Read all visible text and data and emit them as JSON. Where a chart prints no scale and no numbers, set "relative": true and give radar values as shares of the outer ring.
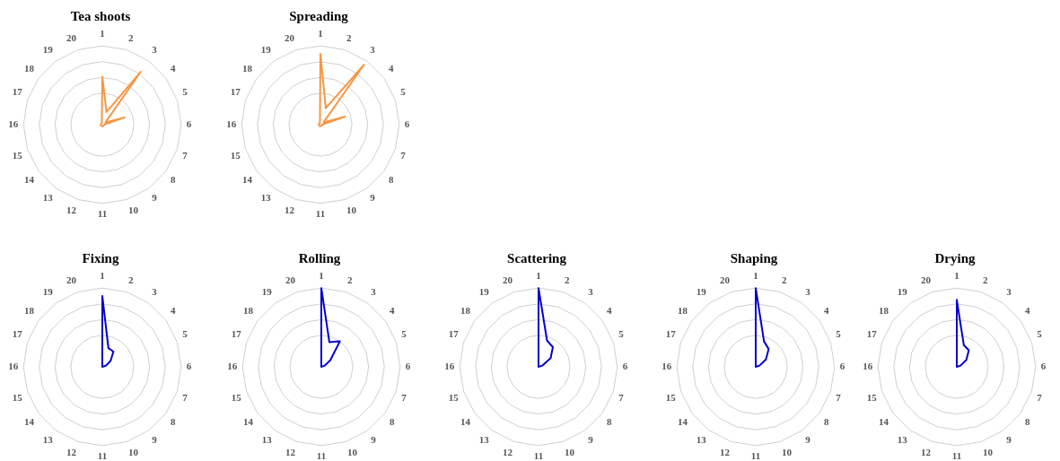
{
  "chart_data": [
    {
      "type": "radar",
      "title": "Tea shoots",
      "relative": true,
      "grid": true,
      "marker": "none",
      "categories": [
        "1",
        "2",
        "3",
        "4",
        "5",
        "6",
        "7",
        "8",
        "9",
        "10",
        "11",
        "12",
        "13",
        "14",
        "15",
        "16",
        "17",
        "18",
        "19",
        "20"
      ],
      "series": [
        {
          "color": "#f79646",
          "values": [
            0.61,
            0.17,
            0.83,
            0.05,
            0.3,
            0.02,
            0.02,
            0.02,
            0.02,
            0.02,
            0.02,
            0.02,
            0.02,
            0.02,
            0.02,
            0.02,
            0.02,
            0.02,
            0.02,
            0.02
          ]
        }
      ]
    },
    {
      "type": "radar",
      "title": "Spreading",
      "relative": true,
      "grid": true,
      "marker": "none",
      "categories": [
        "1",
        "2",
        "3",
        "4",
        "5",
        "6",
        "7",
        "8",
        "9",
        "10",
        "11",
        "12",
        "13",
        "14",
        "15",
        "16",
        "17",
        "18",
        "19",
        "20"
      ],
      "series": [
        {
          "color": "#f79646",
          "values": [
            0.9,
            0.22,
            0.94,
            0.05,
            0.33,
            0.02,
            0.02,
            0.02,
            0.02,
            0.02,
            0.02,
            0.02,
            0.02,
            0.02,
            0.02,
            0.02,
            0.02,
            0.02,
            0.02,
            0.02
          ]
        }
      ]
    },
    {
      "type": "radar",
      "title": "Fixing",
      "relative": true,
      "grid": true,
      "marker": "none",
      "categories": [
        "1",
        "2",
        "3",
        "4",
        "5",
        "6",
        "7",
        "8",
        "9",
        "10",
        "11",
        "12",
        "13",
        "14",
        "15",
        "16",
        "17",
        "18",
        "19",
        "20"
      ],
      "series": [
        {
          "color": "#0000cc",
          "values": [
            0.9,
            0.25,
            0.24,
            0.13,
            0.05,
            0,
            0,
            0,
            0,
            0,
            0,
            0,
            0,
            0,
            0,
            0,
            0,
            0,
            0,
            0
          ]
        }
      ]
    },
    {
      "type": "radar",
      "title": "Rolling",
      "relative": true,
      "grid": true,
      "marker": "none",
      "categories": [
        "1",
        "2",
        "3",
        "4",
        "5",
        "6",
        "7",
        "8",
        "9",
        "10",
        "11",
        "12",
        "13",
        "14",
        "15",
        "16",
        "17",
        "18",
        "19",
        "20"
      ],
      "series": [
        {
          "color": "#0000cc",
          "values": [
            1,
            0.33,
            0.4,
            0.14,
            0.04,
            0,
            0,
            0,
            0,
            0,
            0,
            0,
            0,
            0,
            0,
            0,
            0,
            0,
            0,
            0
          ]
        }
      ]
    },
    {
      "type": "radar",
      "title": "Scattering",
      "relative": true,
      "grid": true,
      "marker": "none",
      "categories": [
        "1",
        "2",
        "3",
        "4",
        "5",
        "6",
        "7",
        "8",
        "9",
        "10",
        "11",
        "12",
        "13",
        "14",
        "15",
        "16",
        "17",
        "18",
        "19",
        "20"
      ],
      "series": [
        {
          "color": "#0000cc",
          "values": [
            1,
            0.35,
            0.31,
            0.19,
            0.05,
            0,
            0,
            0,
            0,
            0,
            0,
            0,
            0,
            0,
            0,
            0,
            0,
            0,
            0,
            0
          ]
        }
      ]
    },
    {
      "type": "radar",
      "title": "Shaping",
      "relative": true,
      "grid": true,
      "marker": "none",
      "categories": [
        "1",
        "2",
        "3",
        "4",
        "5",
        "6",
        "7",
        "8",
        "9",
        "10",
        "11",
        "12",
        "13",
        "14",
        "15",
        "16",
        "17",
        "18",
        "19",
        "20"
      ],
      "series": [
        {
          "color": "#0000cc",
          "values": [
            1,
            0.34,
            0.28,
            0.16,
            0.05,
            0,
            0,
            0,
            0,
            0,
            0,
            0,
            0,
            0,
            0,
            0,
            0,
            0,
            0,
            0
          ]
        }
      ]
    },
    {
      "type": "radar",
      "title": "Drying",
      "relative": true,
      "grid": true,
      "marker": "none",
      "categories": [
        "1",
        "2",
        "3",
        "4",
        "5",
        "6",
        "7",
        "8",
        "9",
        "10",
        "11",
        "12",
        "13",
        "14",
        "15",
        "16",
        "17",
        "18",
        "19",
        "20"
      ],
      "series": [
        {
          "color": "#0000cc",
          "values": [
            0.85,
            0.29,
            0.26,
            0.15,
            0.05,
            0,
            0,
            0,
            0,
            0,
            0,
            0,
            0,
            0,
            0,
            0,
            0,
            0,
            0,
            0
          ]
        }
      ]
    }
  ]
}
